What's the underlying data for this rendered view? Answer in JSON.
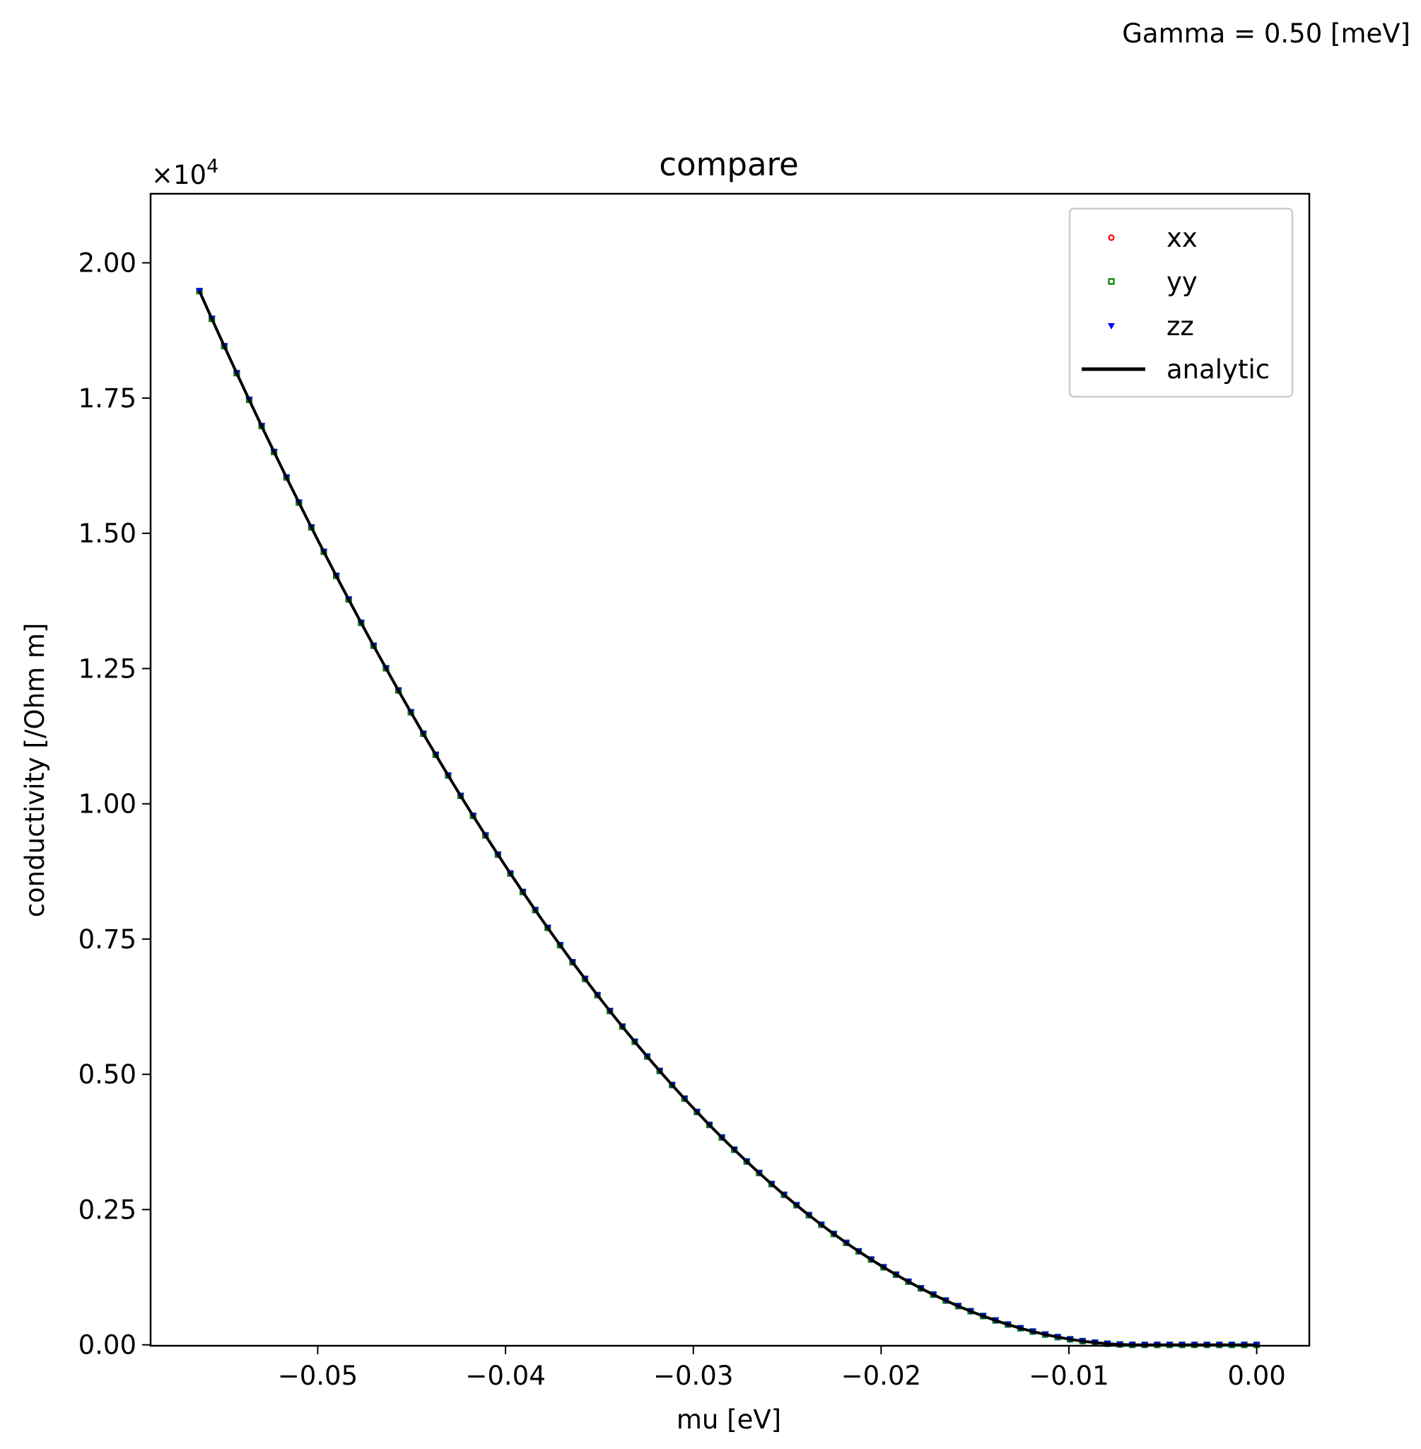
{
  "suptitle": "Gamma = 0.50 [meV]",
  "chart_data": {
    "type": "scatter",
    "title": "compare",
    "xlabel": "mu [eV]",
    "ylabel": "conductivity [/Ohm m]",
    "offset_label": "×10",
    "offset_exponent": "4",
    "xlim": [
      -0.0589,
      0.0028
    ],
    "ylim": [
      -0.0017,
      2.1276
    ],
    "x_ticks": [
      -0.05,
      -0.04,
      -0.03,
      -0.02,
      -0.01,
      0.0
    ],
    "x_tick_labels": [
      "−0.05",
      "−0.04",
      "−0.03",
      "−0.02",
      "−0.01",
      "0.00"
    ],
    "y_ticks": [
      0.0,
      0.25,
      0.5,
      0.75,
      1.0,
      1.25,
      1.5,
      1.75,
      2.0
    ],
    "y_tick_labels": [
      "0.00",
      "0.25",
      "0.50",
      "0.75",
      "1.00",
      "1.25",
      "1.50",
      "1.75",
      "2.00"
    ],
    "legend_position": "upper right",
    "curve_model": "sigma = 1.94 * ((|mu| - 0.0063) / 0.0499)^2 for mu < -0.0063, else 0 (units of 1e4 /Ohm m)",
    "x_range": [
      -0.0563,
      0.0
    ],
    "n_points": 86,
    "series": [
      {
        "name": "xx",
        "marker": "circle",
        "color": "#ff0000"
      },
      {
        "name": "yy",
        "marker": "square",
        "color": "#008000"
      },
      {
        "name": "zz",
        "marker": "triangle-down",
        "color": "#0000ff"
      },
      {
        "name": "analytic",
        "marker": "line",
        "color": "#000000"
      }
    ]
  }
}
